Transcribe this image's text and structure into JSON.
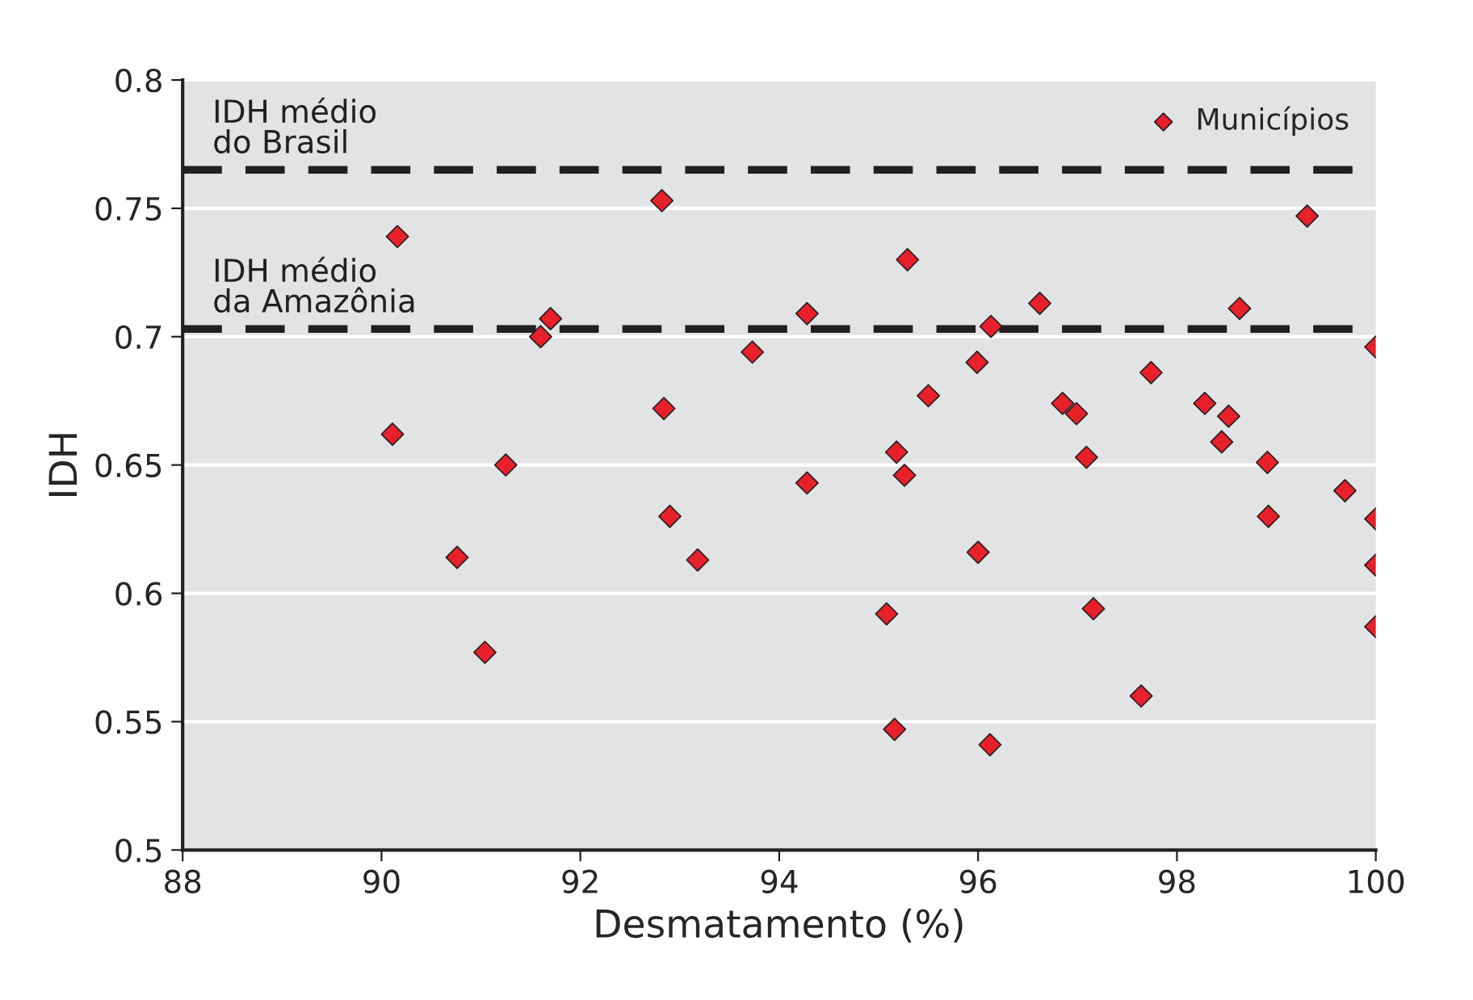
{
  "chart_data": {
    "type": "scatter",
    "xlabel": "Desmatamento (%)",
    "ylabel": "IDH",
    "xlim": [
      88,
      100
    ],
    "xticks": [
      88,
      90,
      92,
      94,
      96,
      98,
      100
    ],
    "ylim": [
      0.5,
      0.8
    ],
    "yticks": [
      0.5,
      0.55,
      0.6,
      0.65,
      0.7,
      0.75,
      0.8
    ],
    "grid": "y",
    "legend": "top right",
    "marker": "diamond",
    "series": [
      {
        "name": "Municípios",
        "color": "#e8202a",
        "x": [
          90.16,
          90.11,
          90.76,
          91.04,
          91.25,
          91.6,
          91.7,
          92.82,
          92.84,
          92.9,
          93.18,
          93.73,
          94.28,
          94.28,
          95.08,
          95.16,
          95.18,
          95.26,
          95.29,
          95.5,
          95.99,
          96.0,
          96.13,
          96.12,
          96.62,
          96.85,
          96.99,
          97.09,
          97.16,
          97.64,
          97.74,
          98.28,
          98.45,
          98.52,
          98.63,
          98.91,
          98.92,
          99.31,
          99.69,
          100.0,
          100.0,
          100.0,
          100.0
        ],
        "values": [
          0.739,
          0.662,
          0.614,
          0.577,
          0.65,
          0.7,
          0.707,
          0.753,
          0.672,
          0.63,
          0.613,
          0.694,
          0.709,
          0.643,
          0.592,
          0.547,
          0.655,
          0.646,
          0.73,
          0.677,
          0.69,
          0.616,
          0.704,
          0.541,
          0.713,
          0.674,
          0.67,
          0.653,
          0.594,
          0.56,
          0.686,
          0.674,
          0.659,
          0.669,
          0.711,
          0.651,
          0.63,
          0.747,
          0.64,
          0.696,
          0.629,
          0.611,
          0.587
        ]
      }
    ],
    "ref_lines": [
      {
        "axis": "y",
        "value": 0.765,
        "label": "IDH médio\ndo Brasil",
        "color": "#231f20",
        "line_style": "dashed"
      },
      {
        "axis": "y",
        "value": 0.703,
        "label": "IDH médio\nda Amazônia",
        "color": "#231f20",
        "line_style": "dashed"
      }
    ]
  }
}
